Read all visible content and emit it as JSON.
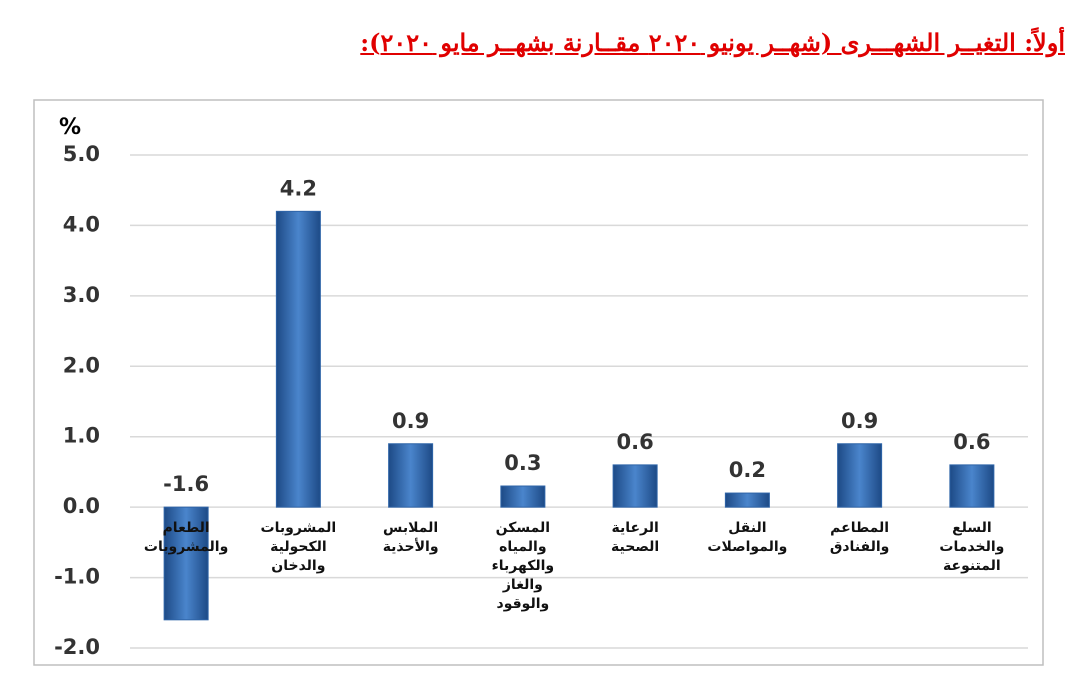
{
  "title": "أولاً: التغيــر الشهـــرى (شهــر يونيو ٢٠٢٠ مقــارنة بشهــر مايو ٢٠٢٠):",
  "chart_data": {
    "type": "bar",
    "y_label": "%",
    "categories": [
      "الطعام والمشروبات",
      "المشروبات الكحولية والدخان",
      "الملابس والأحذية",
      "المسكن والمياه والكهرباء والغاز والوقود",
      "الرعاية الصحية",
      "النقل والمواصلات",
      "المطاعم والفنادق",
      "السلع والخدمات المتنوعة"
    ],
    "values": [
      -1.6,
      4.2,
      0.9,
      0.3,
      0.6,
      0.2,
      0.9,
      0.6
    ],
    "color": "#2e64a8",
    "ylim": [
      -2,
      5
    ],
    "yticks": [
      {
        "value": -2,
        "label": "-2.0"
      },
      {
        "value": -1,
        "label": "-1.0"
      },
      {
        "value": 0,
        "label": "0.0"
      },
      {
        "value": 1,
        "label": "1.0"
      },
      {
        "value": 2,
        "label": "2.0"
      },
      {
        "value": 3,
        "label": "3.0"
      },
      {
        "value": 4,
        "label": "4.0"
      },
      {
        "value": 5,
        "label": "5.0"
      }
    ],
    "grid": true
  }
}
